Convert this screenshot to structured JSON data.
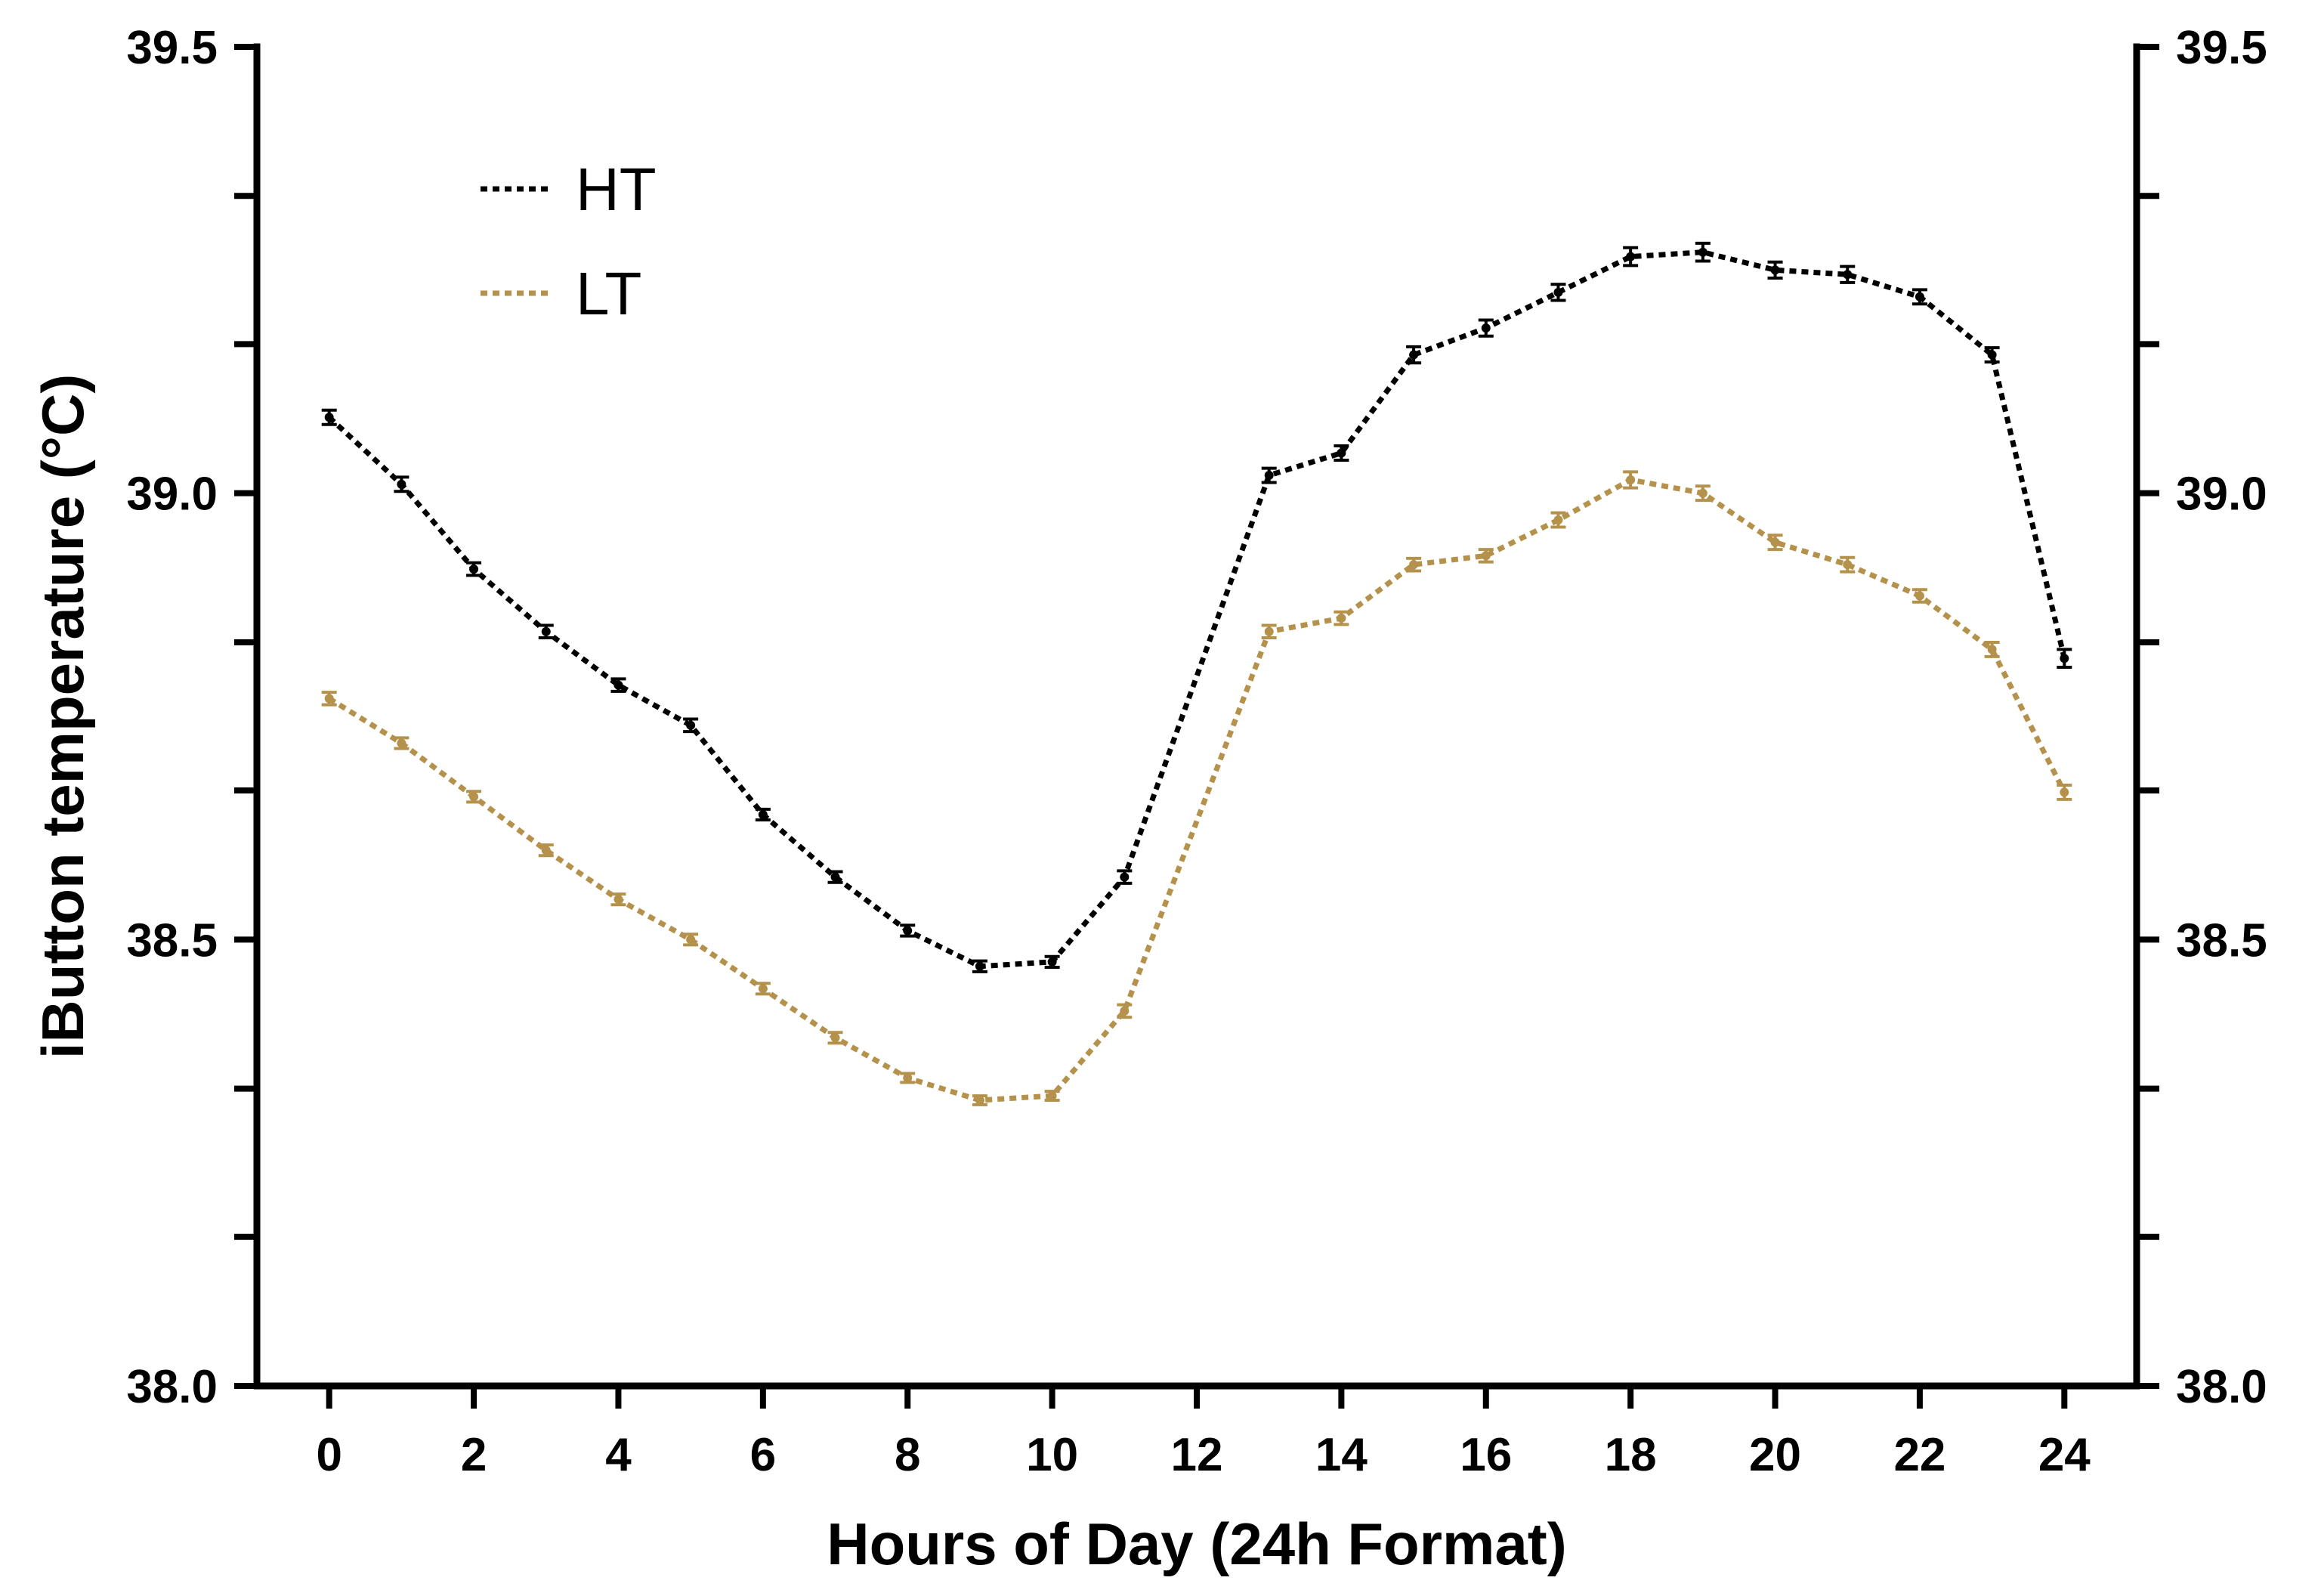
{
  "chart_data": {
    "type": "line",
    "title": "",
    "xlabel": "Hours of Day (24h Format)",
    "ylabel": "iButton temperature (°C)",
    "xlim": [
      -1,
      25
    ],
    "ylim": [
      38.0,
      39.5
    ],
    "x_ticks": [
      0,
      2,
      4,
      6,
      8,
      10,
      12,
      14,
      16,
      18,
      20,
      22,
      24
    ],
    "x_tick_labels": [
      "0",
      "2",
      "4",
      "6",
      "8",
      "10",
      "12",
      "14",
      "16",
      "18",
      "20",
      "22",
      "24"
    ],
    "y_ticks": [
      38.0,
      38.5,
      39.0,
      39.5
    ],
    "y_tick_labels": [
      "38.0",
      "38.5",
      "39.0",
      "39.5"
    ],
    "y_minor_ticks": [
      38.0,
      38.167,
      38.333,
      38.5,
      38.667,
      38.833,
      39.0,
      39.167,
      39.333,
      39.5
    ],
    "right_axis_tick_labels": [
      "38.0",
      "38.5",
      "39.0",
      "39.5"
    ],
    "grid": false,
    "legend_position": "top-left",
    "x": [
      0,
      1,
      2,
      3,
      4,
      5,
      6,
      7,
      8,
      9,
      10,
      11,
      12,
      13,
      14,
      15,
      16,
      17,
      18,
      19,
      20,
      21,
      22,
      23,
      24
    ],
    "series": [
      {
        "name": "HT",
        "color": "#000000",
        "style": "dotted",
        "values": [
          39.085,
          39.01,
          38.915,
          38.845,
          38.785,
          38.74,
          38.64,
          38.57,
          38.51,
          38.47,
          38.475,
          38.57,
          null,
          39.02,
          39.045,
          39.155,
          39.185,
          39.225,
          39.265,
          39.27,
          39.25,
          39.245,
          39.22,
          39.155,
          38.815
        ],
        "errors": [
          0.008,
          0.008,
          0.007,
          0.007,
          0.007,
          0.007,
          0.006,
          0.006,
          0.006,
          0.006,
          0.006,
          0.007,
          null,
          0.008,
          0.008,
          0.009,
          0.009,
          0.009,
          0.01,
          0.01,
          0.009,
          0.009,
          0.008,
          0.008,
          0.01
        ]
      },
      {
        "name": "LT",
        "color": "#b5924c",
        "style": "dotted",
        "values": [
          38.77,
          38.72,
          38.66,
          38.6,
          38.545,
          38.5,
          38.445,
          38.39,
          38.345,
          38.32,
          38.325,
          38.42,
          null,
          38.845,
          38.86,
          38.92,
          38.93,
          38.97,
          39.015,
          39.0,
          38.945,
          38.92,
          38.885,
          38.825,
          38.665
        ],
        "errors": [
          0.007,
          0.006,
          0.006,
          0.006,
          0.006,
          0.006,
          0.006,
          0.006,
          0.005,
          0.005,
          0.005,
          0.007,
          null,
          0.007,
          0.007,
          0.007,
          0.007,
          0.008,
          0.009,
          0.008,
          0.008,
          0.008,
          0.007,
          0.008,
          0.008
        ]
      }
    ]
  }
}
